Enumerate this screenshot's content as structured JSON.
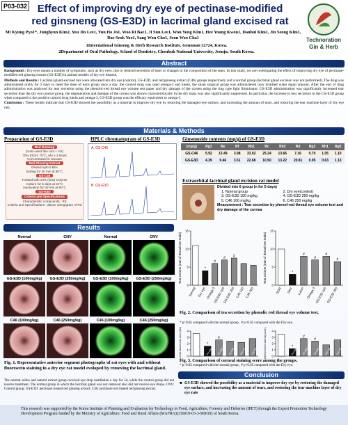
{
  "header": {
    "code": "P03-032",
    "title": "Effect of improving dry eye of pectinase-modified red ginsneng (GS-E3D) in lacrimal gland excised rat",
    "authors": "Mi Kyung Pyo1*, Junghyun Kim2, You Jin Lee1, Yun Ho Jo1, Woo Ri Bae1, Ji Sun Lee1, Won Yong Kim1, Hee Young Kwon1, Danhui Kim1, Jin Seong Kim1, Dae Seok Yoo1, Sang Won Cho1, Seon Woo Cha1",
    "affiliations": [
      "1International Ginseng & Herb Research Institute, Geumsan 32724, Korea.",
      "2Department of Oral Pathology, School of Dentistry, Chonbuk National University, Jeonju, South Korea."
    ],
    "logo": [
      "Technoration",
      "Gin & Herb"
    ]
  },
  "abstract": {
    "heading": "Abstract",
    "paragraphs": [
      {
        "label": "Background :",
        "text": "Dry eyes means a number of symptoms, such as dry eyes, due to reduced secretion of tears or changes in the composition of the tears. In this study, we are investigating the effect of improving dry eye of pectinase-modified red ginseng extract (GS-E3D) in animal models of dry eye disease."
      },
      {
        "label": "Methods and Results :",
        "text": "Lacrimal gland-excised rats were allocated into dry eye (control), GS-E3D, and red ginseng extract (C46) groups respectively and a normal group (lacrimal gland excision was not performed). The drug was administered orally for 5 days to meet the dose of each group once a day, the control drug was used omega-3 and lutein, the sham surgical group was administered only distilled water equal amount. After the end of drug administration was analyzed for tear secretion using the phenolic-red thread eye volume test paper and dry damage of the cornea using the ring type light illuminator. GS-E3D administration was significantly increased tear secretion than the dry eye control group, the degeneration and damage of the cornea was shown characteristically in the dry mass was also significantly suppressed. In particular, the increase in tear secretion in the GS-E3D group when compared to the positive control drug lutein and omega-3, GS-E3D group was the efficacy equivalent to omega-3"
      },
      {
        "label": "Conclusion :",
        "text": "These results indicate that GS-E3D showed the possibility as a material to improve dry eye by restoring the damaged eye surface, and increasing the amount of tears, and restoring the tear machine layer of dry eye rats."
      }
    ]
  },
  "methods": {
    "heading": "Materials & Methods",
    "preparation": {
      "title": "Preparation of GS-E3D",
      "steps": [
        "Red Ginseng",
        "(roots-used fibe root + 4:6)",
        "70% EtOH, 75°C, 6hr x 3 times",
        "Concentrated in vacuum",
        "Red Ginseng Extract",
        "Diluted upto 5 Brix",
        "Boiling for 30 min at 90°C",
        "GS-C46",
        "Treated with 10% (w/w) enzyme",
        "Culture for 5 days at 50°C",
        "Inactivation for 30 min at 90°C",
        "GS-E3D",
        "Criteria and Specifications",
        "Characteristic compounds : Rd",
        "Criteria and Specifications : above 10mg/gram of Rd"
      ]
    },
    "hplc": {
      "title": "HPLC chromatogram of GS-E3D",
      "panels": [
        "A. GS-C46",
        "B. GS-E3D"
      ]
    },
    "table": {
      "title": "Ginsenoside contents (mg/g) of GS-E3D",
      "header": [
        "(mg/g)",
        "Rg1",
        "Re",
        "Rf",
        "Rb1",
        "Rc",
        "Rb2",
        "Rd",
        "Rg3",
        "Rh1",
        "Rg5"
      ],
      "rows": [
        [
          "GS-C46",
          "5.92",
          "13.49",
          "3.98",
          "33.02",
          "25.24",
          "13.66",
          "7.16",
          "0.70",
          "1.05",
          "1.10"
        ],
        [
          "GS-E3D",
          "4.39",
          "9.46",
          "3.51",
          "22.68",
          "10.50",
          "13.22",
          "20.81",
          "0.95",
          "0.63",
          "1.13"
        ]
      ]
    },
    "model": {
      "title": "Extraorbital lacrimal gland excision rat model",
      "groups_title": "Divided into 6 group (n for 5 days)",
      "groups": [
        "1. Normal group",
        "2. Dry eye(control)",
        "3. GS-E3D 100 mg/kg",
        "4. GS-E3D 250 mg/kg",
        "5. C46 100 mg/kg",
        "6. C46 250 mg/kg"
      ],
      "measurement": "Measurement : Tear secretion by phenol-red thread eye volume test and dry damage of the cornea"
    }
  },
  "results": {
    "heading": "Results",
    "fig1": {
      "panels": [
        [
          "Normal",
          "CNV",
          "GS-E3D (100mg/kg)",
          "GS-E3D (250mg/kg)",
          "C46 (100mg/kg)",
          "C46 (250mg/kg)"
        ],
        [
          "Normal",
          "CNV",
          "GS-E3D (100mg/kg)",
          "GS-E3D (250mg/kg)",
          "C46 (100mg/kg)",
          "C46 (250mg/kg)"
        ]
      ],
      "caption_title": "Fig. 1. Representative anterior segment photographs of rat eyes with and without fluorescein staining in a dry eye rat model evoloped by removing the lacrimal gland.",
      "caption": "The normal saline and natural extract group received eye drop instillation a day for 5d, while the control group did not receive treatment. The normal group in which the lacrimal gland was not removed also did not receive eye drops. CNV: Control group; GS-E3D: pectinase treated red ginseng extract; C46: pectinase not treated red ginseng extract."
    },
    "fig2": {
      "charts": [
        {
          "ylabel": "Tear volume (mm of thread wet 5min)",
          "categories": [
            "Normal",
            "Dry eye",
            "Omega-3",
            "GS-E3D 100",
            "GS-E3D 250",
            "C46 100",
            "C46 250"
          ],
          "values": [
            11,
            4,
            6,
            7,
            7.5,
            6,
            5.5
          ],
          "sig": [
            null,
            "*",
            "#",
            "#",
            "#",
            null,
            null
          ],
          "colors": [
            "#ffffff",
            "#111111",
            "#888888",
            "#888888",
            "#888888",
            "#888888",
            "#888888"
          ],
          "ylim": [
            0,
            15
          ],
          "yticks": [
            0,
            5,
            10,
            15
          ]
        },
        {
          "ylabel": "Tear volume (mm of thread wet 5min)",
          "categories": [
            "NOR",
            "DRY",
            "Lutein",
            "Omega 3",
            "GS-E3D 100",
            "GS-E3D 250"
          ],
          "values": [
            10,
            3,
            8,
            7,
            8,
            6.5
          ],
          "sig": [
            null,
            "*",
            "#",
            "#",
            "#",
            "#"
          ],
          "colors": [
            "#ffffff",
            "#111111",
            "#888888",
            "#888888",
            "#888888",
            "#888888"
          ],
          "ylim": [
            0,
            15
          ],
          "yticks": [
            0,
            5,
            10,
            15
          ]
        }
      ],
      "caption": "Fig. 2. Comparison of tea secretion by phenolic red thread eye volume test.",
      "note": "* p<0.05 compared with the normal group , # p<0.05 compared with the Dry eye."
    },
    "fig3": {
      "charts": [
        {
          "ylabel": "Corneal smoothness score (AU)",
          "categories": [
            "Normal",
            "Dry eye",
            "GS-E3D 100",
            "GS-E3D 250",
            "C46 100",
            "C46 250"
          ],
          "values": [
            3.6,
            1.6,
            2.6,
            2.4,
            2.2,
            2.8
          ],
          "sig": [
            null,
            "*",
            "#",
            null,
            null,
            null
          ],
          "colors": [
            "#ffffff",
            "#111111",
            "#888888",
            "#888888",
            "#888888",
            "#888888"
          ],
          "ylim": [
            0,
            4
          ],
          "yticks": [
            0,
            1,
            2,
            3,
            4
          ]
        },
        {
          "ylabel": "Corneal fluorescein staining score (AU)",
          "categories": [
            "Normal",
            "Dry eye",
            "GS-E3D 100",
            "GS-E3D 250",
            "C46 100",
            "C46 250"
          ],
          "values": [
            3.5,
            1.2,
            2.8,
            2.4,
            1.8,
            2.6
          ],
          "sig": [
            null,
            "*",
            "#",
            "#",
            null,
            null
          ],
          "colors": [
            "#ffffff",
            "#111111",
            "#888888",
            "#888888",
            "#888888",
            "#888888"
          ],
          "ylim": [
            0,
            4
          ],
          "yticks": [
            0,
            1,
            2,
            3,
            4
          ]
        }
      ],
      "caption": "Fig. 3. Comparison of corneal staining score among the groups.",
      "note": "* p<0.05 compared with the normal group , # p<0.05 compared with the Dry eye."
    }
  },
  "conclusion": {
    "heading": "Conclusion",
    "text": "GS-E3D showed the possibility as a material to improve dry eye by restoring the damaged eye surface, and increasing the amount of tears, and restoring the tear machine layer of dry eye rats"
  },
  "footer": "This research was supported by the Korea Institute of Planning and Evaluation for Technology in Food, Agriculture, Forestry and Fisheries (IPET) through the Export Promotion Technology Development Program funded by the Ministry of Agriculture, Food and Rural Affairs (MAFRA)(316019-03-3-SB010) of South Korea."
}
